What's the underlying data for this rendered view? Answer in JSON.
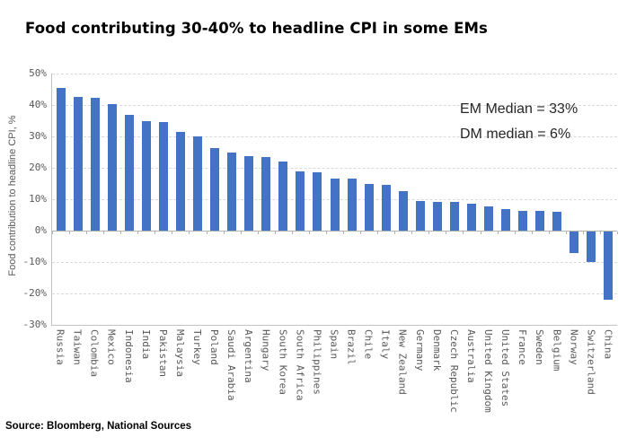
{
  "header": {
    "title": "Food contributing 30-40% to headline CPI in some EMs"
  },
  "annotation": {
    "line1": "EM Median = 33%",
    "line2": "DM median = 6%"
  },
  "footer": {
    "source": "Source: Bloomberg, National Sources"
  },
  "colors": {
    "bar": "#4472C4",
    "gridline": "#d9d9d9",
    "axis_line": "#b3b3b3",
    "axis_text": "#595959",
    "title_text": "#000000",
    "annotation_text": "#262626",
    "background": "#ffffff"
  },
  "chart_data": {
    "type": "bar",
    "title": "Food contributing 30-40% to headline CPI in some EMs",
    "xlabel": "",
    "ylabel": "Food contribution to headline CPI, %",
    "ylim": [
      -30,
      50
    ],
    "ytick_step": 10,
    "ytick_labels": [
      "50%",
      "40%",
      "30%",
      "20%",
      "10%",
      "0%",
      "-10%",
      "-20%",
      "-30%"
    ],
    "grid": "horizontal-dashed",
    "legend": "none",
    "bar_color": "#4472C4",
    "annotations": [
      "EM Median = 33%",
      "DM median = 6%"
    ],
    "source": "Source: Bloomberg, National Sources",
    "categories": [
      "Russia",
      "Taiwan",
      "Colombia",
      "Mexico",
      "Indonesia",
      "India",
      "Pakistan",
      "Malaysia",
      "Turkey",
      "Poland",
      "Saudi Arabia",
      "Argentina",
      "Hungary",
      "South Korea",
      "South Africa",
      "Philippines",
      "Spain",
      "Brazil",
      "Chile",
      "Italy",
      "New Zealand",
      "Germany",
      "Denmark",
      "Czech Republic",
      "Australia",
      "United Kingdom",
      "United States",
      "France",
      "Sweden",
      "Belgium",
      "Norway",
      "Switzerland",
      "China"
    ],
    "values": [
      45.3,
      42.7,
      42.3,
      40.3,
      37.0,
      35.0,
      34.7,
      31.5,
      30.0,
      26.3,
      25.0,
      23.6,
      23.5,
      22.0,
      19.0,
      18.6,
      16.7,
      16.5,
      15.0,
      14.6,
      12.6,
      9.5,
      9.2,
      9.1,
      8.6,
      7.6,
      6.9,
      6.3,
      6.2,
      6.0,
      -6.8,
      -9.7,
      -21.8
    ]
  }
}
